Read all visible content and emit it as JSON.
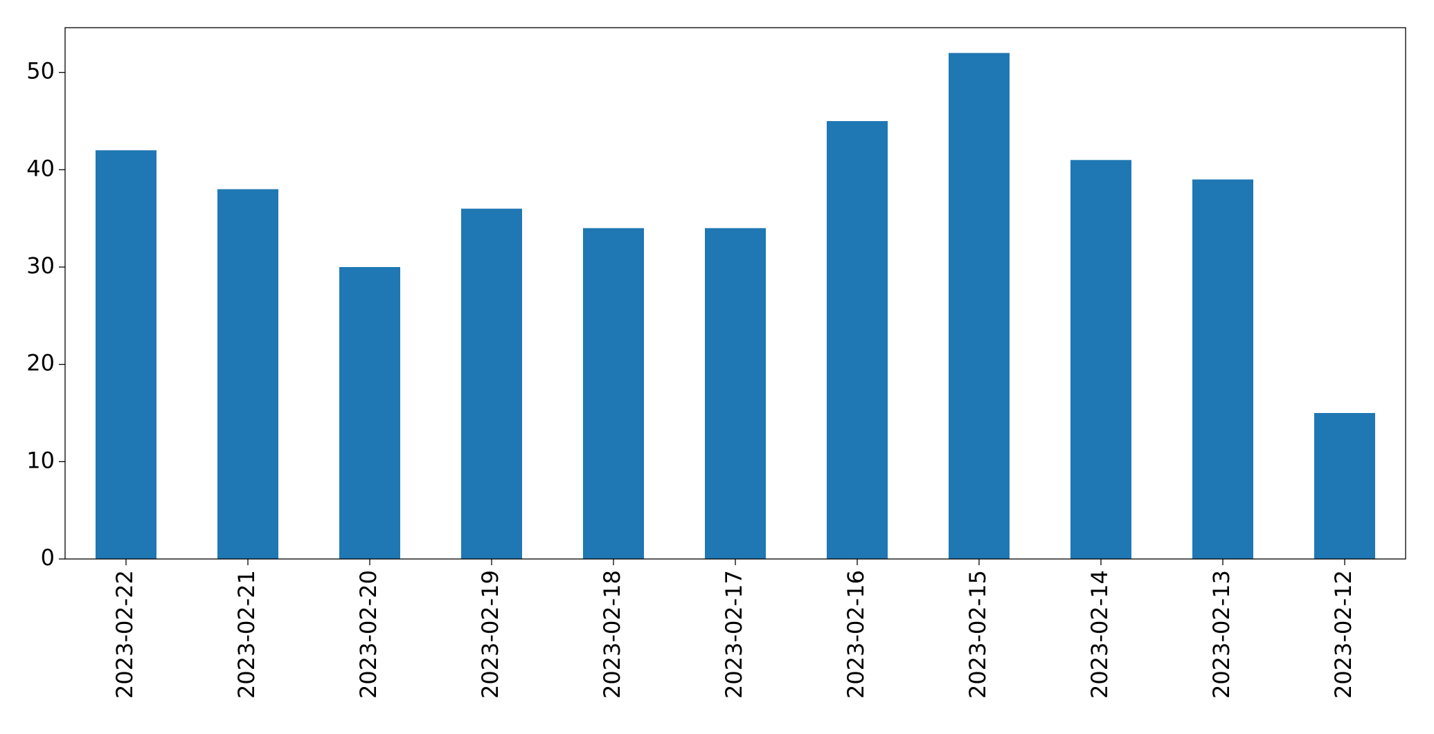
{
  "chart_data": {
    "type": "bar",
    "categories": [
      "2023-02-22",
      "2023-02-21",
      "2023-02-20",
      "2023-02-19",
      "2023-02-18",
      "2023-02-17",
      "2023-02-16",
      "2023-02-15",
      "2023-02-14",
      "2023-02-13",
      "2023-02-12"
    ],
    "values": [
      42,
      38,
      30,
      36,
      34,
      34,
      45,
      52,
      41,
      39,
      15
    ],
    "color": "#1f77b4",
    "ylim": [
      0,
      54.6
    ],
    "yticks": [
      0,
      10,
      20,
      30,
      40,
      50
    ],
    "grid": false
  }
}
